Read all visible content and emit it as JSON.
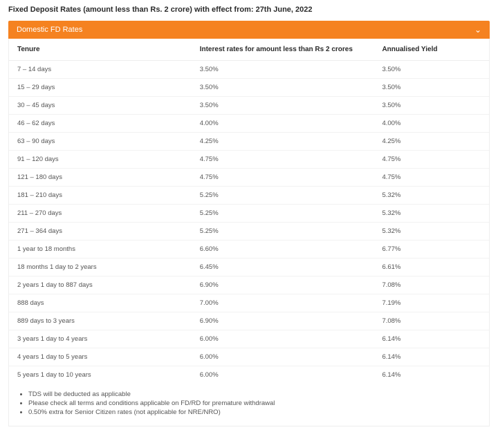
{
  "page": {
    "title": "Fixed Deposit Rates (amount less than Rs. 2 crore) with effect from: 27th June, 2022"
  },
  "accordion": {
    "header": "Domestic FD Rates",
    "chevron": "⌄"
  },
  "table": {
    "columns": [
      "Tenure",
      "Interest rates for amount less than Rs 2 crores",
      "Annualised Yield"
    ],
    "rows": [
      [
        "7 – 14 days",
        "3.50%",
        "3.50%"
      ],
      [
        "15 – 29 days",
        "3.50%",
        "3.50%"
      ],
      [
        "30 – 45 days",
        "3.50%",
        "3.50%"
      ],
      [
        "46 – 62 days",
        "4.00%",
        "4.00%"
      ],
      [
        "63 – 90 days",
        "4.25%",
        "4.25%"
      ],
      [
        "91 – 120 days",
        "4.75%",
        "4.75%"
      ],
      [
        "121 – 180 days",
        "4.75%",
        "4.75%"
      ],
      [
        "181 – 210 days",
        "5.25%",
        "5.32%"
      ],
      [
        "211 – 270 days",
        "5.25%",
        "5.32%"
      ],
      [
        "271 – 364 days",
        "5.25%",
        "5.32%"
      ],
      [
        "1 year to 18 months",
        "6.60%",
        "6.77%"
      ],
      [
        "18 months 1 day to 2 years",
        "6.45%",
        "6.61%"
      ],
      [
        "2 years 1 day to 887 days",
        "6.90%",
        "7.08%"
      ],
      [
        "888 days",
        "7.00%",
        "7.19%"
      ],
      [
        "889 days to 3 years",
        "6.90%",
        "7.08%"
      ],
      [
        "3 years 1 day to 4 years",
        "6.00%",
        "6.14%"
      ],
      [
        "4 years 1 day to 5 years",
        "6.00%",
        "6.14%"
      ],
      [
        "5 years 1 day to 10 years",
        "6.00%",
        "6.14%"
      ]
    ]
  },
  "notes": [
    "TDS will be deducted as applicable",
    "Please check all terms and conditions applicable on FD/RD for premature withdrawal",
    "0.50% extra for Senior Citizen rates (not applicable for NRE/NRO)"
  ],
  "colors": {
    "accent": "#f58220",
    "text": "#333333",
    "muted": "#555555",
    "border": "#eeeeee"
  }
}
